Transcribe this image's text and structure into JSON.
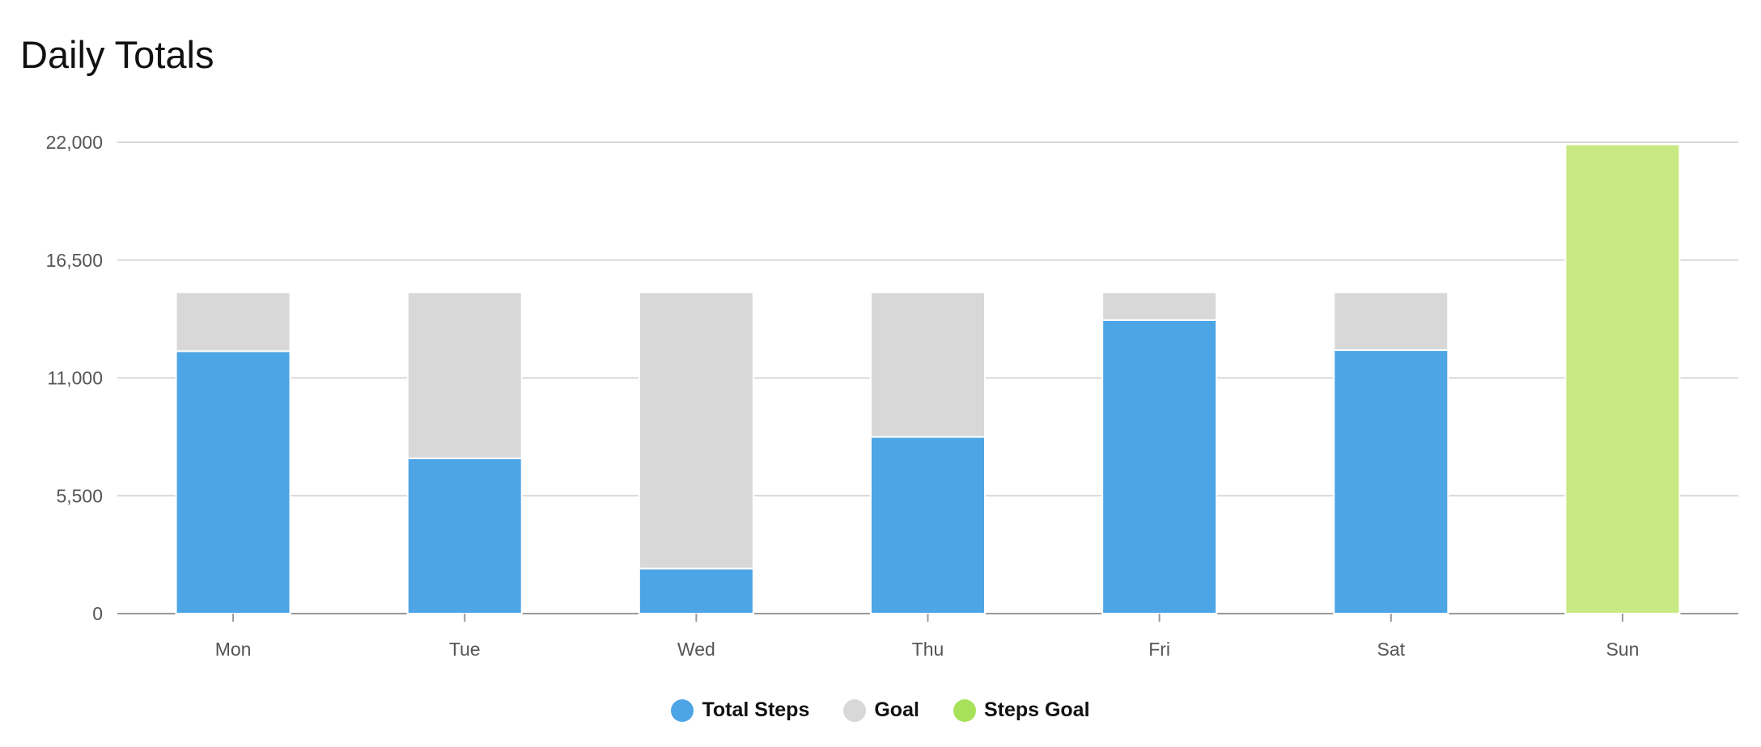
{
  "chart_data": {
    "type": "bar",
    "stacked": true,
    "title": "Daily Totals",
    "xlabel": "",
    "ylabel": "",
    "ylim": [
      0,
      22000
    ],
    "yticks": [
      0,
      5500,
      11000,
      16500,
      22000
    ],
    "ytick_labels": [
      "0",
      "5,500",
      "11,000",
      "16,500",
      "22,000"
    ],
    "categories": [
      "Mon",
      "Tue",
      "Wed",
      "Thu",
      "Fri",
      "Sat",
      "Sun"
    ],
    "series": [
      {
        "name": "Total Steps",
        "color": "#4da5e6",
        "values": [
          12250,
          7250,
          2100,
          8250,
          13700,
          12300,
          0
        ]
      },
      {
        "name": "Goal",
        "color": "#d8d8d8",
        "values": [
          2750,
          7750,
          12900,
          6750,
          1300,
          2700,
          0
        ]
      },
      {
        "name": "Steps Goal",
        "color": "#c9e982",
        "values": [
          0,
          0,
          0,
          0,
          0,
          0,
          21900
        ]
      }
    ],
    "grid": true,
    "legend_position": "bottom-center"
  },
  "legend": [
    {
      "label": "Total Steps",
      "color": "#4da5e6"
    },
    {
      "label": "Goal",
      "color": "#d8d8d8"
    },
    {
      "label": "Steps Goal",
      "color": "#a8e25a"
    }
  ]
}
